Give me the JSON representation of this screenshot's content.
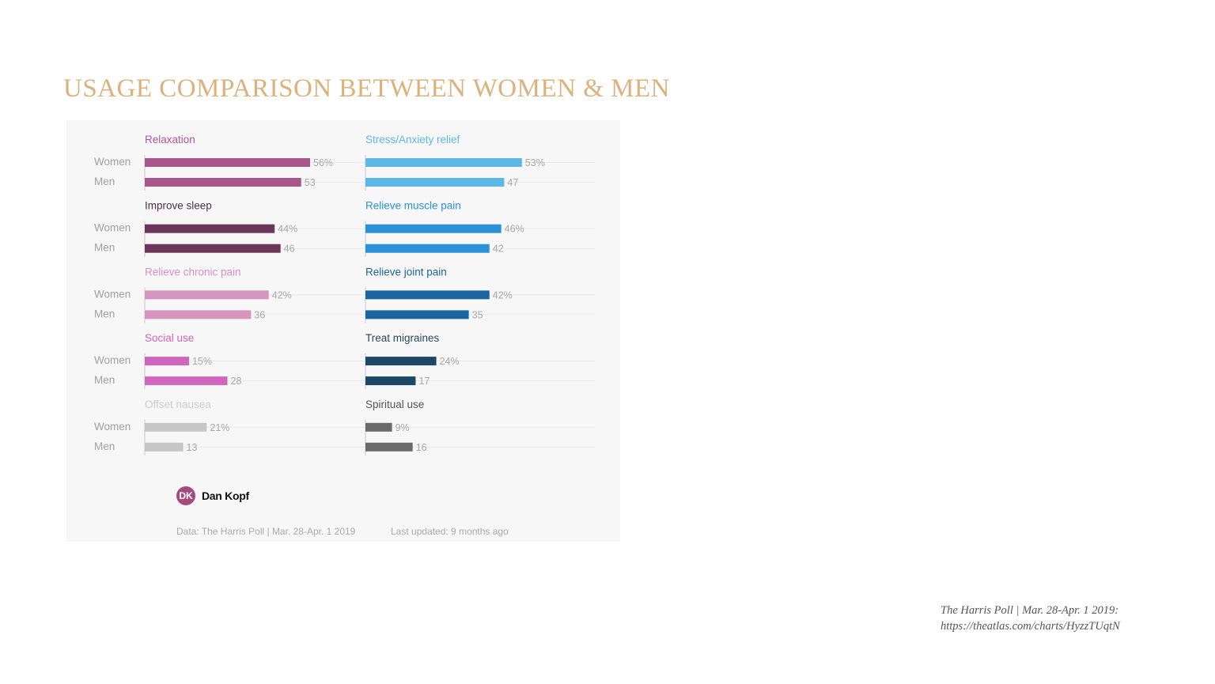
{
  "title": "USAGE COMPARISON BETWEEN WOMEN & MEN",
  "chart_data": {
    "type": "bar",
    "orientation": "horizontal",
    "groups": [
      "Women",
      "Men"
    ],
    "xlim": [
      0,
      56
    ],
    "panels": [
      {
        "label": "Relaxation",
        "color": "#a9578a",
        "women": 56,
        "men": 53,
        "women_label": "56%",
        "men_label": "53"
      },
      {
        "label": "Stress/Anxiety relief",
        "color": "#5cb8e6",
        "women": 53,
        "men": 47,
        "women_label": "53%",
        "men_label": "47"
      },
      {
        "label": "Improve sleep",
        "color": "#6c3658",
        "women": 44,
        "men": 46,
        "women_label": "44%",
        "men_label": "46"
      },
      {
        "label": "Relieve muscle pain",
        "color": "#2b92d8",
        "women": 46,
        "men": 42,
        "women_label": "46%",
        "men_label": "42"
      },
      {
        "label": "Relieve chronic pain",
        "color": "#d596bd",
        "women": 42,
        "men": 36,
        "women_label": "42%",
        "men_label": "36"
      },
      {
        "label": "Relieve joint pain",
        "color": "#1a64a0",
        "women": 42,
        "men": 35,
        "women_label": "42%",
        "men_label": "35"
      },
      {
        "label": "Social use",
        "color": "#d065bd",
        "women": 15,
        "men": 28,
        "women_label": "15%",
        "men_label": "28"
      },
      {
        "label": "Treat migraines",
        "color": "#1c4766",
        "women": 24,
        "men": 17,
        "women_label": "24%",
        "men_label": "17"
      },
      {
        "label": "Offset nausea",
        "color": "#c6c6c6",
        "women": 21,
        "men": 13,
        "women_label": "21%",
        "men_label": "13"
      },
      {
        "label": "Spiritual use",
        "color": "#6b6b6b",
        "women": 9,
        "men": 16,
        "women_label": "9%",
        "men_label": "16"
      }
    ],
    "row_labels": {
      "women": "Women",
      "men": "Men"
    },
    "label_colors": [
      "#b5578f",
      "#5cb8e6",
      "#4a3346",
      "#2b92d8",
      "#d98fc0",
      "#1a64a0",
      "#d065bd",
      "#2b4860",
      "#cccccc",
      "#555555"
    ]
  },
  "author": {
    "initials": "DK",
    "name": "Dan Kopf"
  },
  "footer": {
    "source": "Data: The Harris Poll | Mar. 28-Apr. 1 2019",
    "updated": "Last updated: 9 months ago"
  },
  "citation": {
    "line1": "The Harris Poll | Mar. 28-Apr. 1 2019:",
    "line2": "https://theatlas.com/charts/HyzzTUqtN"
  }
}
